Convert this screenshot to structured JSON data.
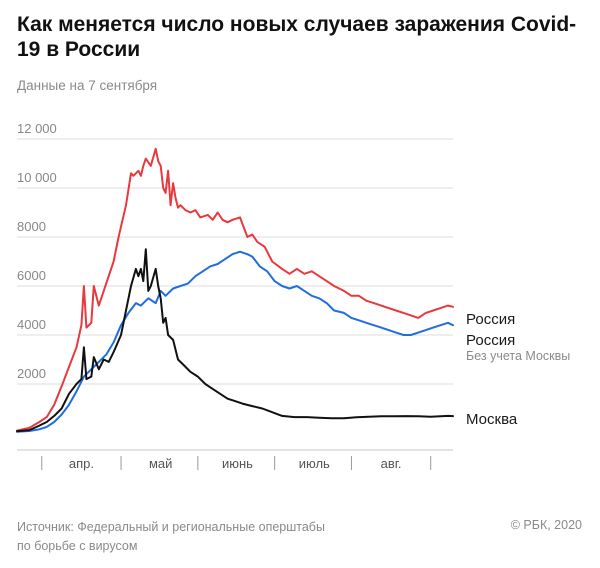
{
  "header": {
    "title": "Как меняется число новых случаев заражения Covid-19 в России",
    "subtitle": "Данные на 7 сентября"
  },
  "footer": {
    "source_line1": "Источник: Федеральный и региональные оперштабы",
    "source_line2": "по борьбе с вирусом",
    "copyright": "© РБК, 2020"
  },
  "chart_data": {
    "type": "line",
    "title": "Как меняется число новых случаев заражения Covid-19 в России",
    "subtitle": "Данные на 7 сентября",
    "x_start": "2020-03-15",
    "x_end": "2020-09-07",
    "x_ticks": [
      {
        "date": "2020-03-25"
      },
      {
        "date": "2020-04-26"
      },
      {
        "date": "2020-05-27"
      },
      {
        "date": "2020-06-27"
      },
      {
        "date": "2020-07-28"
      },
      {
        "date": "2020-08-29"
      }
    ],
    "month_labels": [
      {
        "label": "апр.",
        "date": "2020-04-10"
      },
      {
        "label": "май",
        "date": "2020-05-12"
      },
      {
        "label": "июнь",
        "date": "2020-06-12"
      },
      {
        "label": "июль",
        "date": "2020-07-13"
      },
      {
        "label": "авг.",
        "date": "2020-08-13"
      }
    ],
    "y_ticks": [
      2000,
      4000,
      6000,
      8000,
      10000,
      12000
    ],
    "y_tick_labels": [
      "2000",
      "4000",
      "6000",
      "8000",
      "10 000",
      "12 000"
    ],
    "ylim": [
      0,
      12000
    ],
    "grid": true,
    "series": [
      {
        "name": "Россия",
        "sublabel": "",
        "color": "#e8393d",
        "points": [
          [
            "2020-03-15",
            100
          ],
          [
            "2020-03-20",
            210
          ],
          [
            "2020-03-24",
            450
          ],
          [
            "2020-03-27",
            650
          ],
          [
            "2020-03-30",
            1150
          ],
          [
            "2020-04-02",
            1900
          ],
          [
            "2020-04-05",
            2700
          ],
          [
            "2020-04-08",
            3500
          ],
          [
            "2020-04-10",
            4400
          ],
          [
            "2020-04-11",
            6000
          ],
          [
            "2020-04-12",
            4300
          ],
          [
            "2020-04-14",
            4500
          ],
          [
            "2020-04-15",
            6000
          ],
          [
            "2020-04-17",
            5200
          ],
          [
            "2020-04-20",
            6100
          ],
          [
            "2020-04-23",
            7000
          ],
          [
            "2020-04-25",
            8000
          ],
          [
            "2020-04-28",
            9300
          ],
          [
            "2020-04-30",
            10600
          ],
          [
            "2020-05-01",
            10500
          ],
          [
            "2020-05-02",
            10600
          ],
          [
            "2020-05-03",
            10700
          ],
          [
            "2020-05-04",
            10500
          ],
          [
            "2020-05-05",
            10900
          ],
          [
            "2020-05-06",
            11200
          ],
          [
            "2020-05-08",
            10900
          ],
          [
            "2020-05-10",
            11600
          ],
          [
            "2020-05-11",
            11100
          ],
          [
            "2020-05-12",
            10900
          ],
          [
            "2020-05-13",
            10000
          ],
          [
            "2020-05-14",
            9800
          ],
          [
            "2020-05-15",
            10700
          ],
          [
            "2020-05-16",
            9300
          ],
          [
            "2020-05-17",
            10200
          ],
          [
            "2020-05-18",
            9600
          ],
          [
            "2020-05-19",
            9200
          ],
          [
            "2020-05-20",
            9300
          ],
          [
            "2020-05-22",
            9100
          ],
          [
            "2020-05-24",
            9000
          ],
          [
            "2020-05-26",
            9100
          ],
          [
            "2020-05-28",
            8800
          ],
          [
            "2020-05-31",
            8900
          ],
          [
            "2020-06-02",
            8700
          ],
          [
            "2020-06-04",
            9000
          ],
          [
            "2020-06-06",
            8700
          ],
          [
            "2020-06-08",
            8600
          ],
          [
            "2020-06-10",
            8700
          ],
          [
            "2020-06-13",
            8800
          ],
          [
            "2020-06-16",
            8000
          ],
          [
            "2020-06-18",
            8100
          ],
          [
            "2020-06-20",
            7800
          ],
          [
            "2020-06-23",
            7600
          ],
          [
            "2020-06-26",
            7000
          ],
          [
            "2020-06-30",
            6700
          ],
          [
            "2020-07-03",
            6500
          ],
          [
            "2020-07-06",
            6700
          ],
          [
            "2020-07-09",
            6500
          ],
          [
            "2020-07-12",
            6600
          ],
          [
            "2020-07-15",
            6400
          ],
          [
            "2020-07-18",
            6200
          ],
          [
            "2020-07-21",
            6000
          ],
          [
            "2020-07-25",
            5800
          ],
          [
            "2020-07-28",
            5600
          ],
          [
            "2020-07-31",
            5600
          ],
          [
            "2020-08-03",
            5400
          ],
          [
            "2020-08-06",
            5300
          ],
          [
            "2020-08-09",
            5200
          ],
          [
            "2020-08-12",
            5100
          ],
          [
            "2020-08-15",
            5000
          ],
          [
            "2020-08-18",
            4900
          ],
          [
            "2020-08-21",
            4800
          ],
          [
            "2020-08-24",
            4700
          ],
          [
            "2020-08-27",
            4900
          ],
          [
            "2020-08-30",
            5000
          ],
          [
            "2020-09-02",
            5100
          ],
          [
            "2020-09-05",
            5200
          ],
          [
            "2020-09-07",
            5150
          ]
        ]
      },
      {
        "name": "Россия",
        "sublabel": "Без учета Москвы",
        "color": "#1f6ee0",
        "points": [
          [
            "2020-03-15",
            50
          ],
          [
            "2020-03-20",
            80
          ],
          [
            "2020-03-24",
            150
          ],
          [
            "2020-03-27",
            250
          ],
          [
            "2020-03-30",
            450
          ],
          [
            "2020-04-02",
            750
          ],
          [
            "2020-04-05",
            1150
          ],
          [
            "2020-04-08",
            1700
          ],
          [
            "2020-04-11",
            2300
          ],
          [
            "2020-04-14",
            2600
          ],
          [
            "2020-04-17",
            2900
          ],
          [
            "2020-04-20",
            3200
          ],
          [
            "2020-04-23",
            3700
          ],
          [
            "2020-04-26",
            4400
          ],
          [
            "2020-04-29",
            4900
          ],
          [
            "2020-05-02",
            5300
          ],
          [
            "2020-05-04",
            5200
          ],
          [
            "2020-05-07",
            5500
          ],
          [
            "2020-05-10",
            5300
          ],
          [
            "2020-05-12",
            5800
          ],
          [
            "2020-05-14",
            5600
          ],
          [
            "2020-05-17",
            5900
          ],
          [
            "2020-05-20",
            6000
          ],
          [
            "2020-05-23",
            6100
          ],
          [
            "2020-05-26",
            6400
          ],
          [
            "2020-05-29",
            6600
          ],
          [
            "2020-06-01",
            6800
          ],
          [
            "2020-06-04",
            6900
          ],
          [
            "2020-06-07",
            7100
          ],
          [
            "2020-06-10",
            7300
          ],
          [
            "2020-06-13",
            7400
          ],
          [
            "2020-06-16",
            7300
          ],
          [
            "2020-06-18",
            7200
          ],
          [
            "2020-06-21",
            6800
          ],
          [
            "2020-06-24",
            6600
          ],
          [
            "2020-06-27",
            6200
          ],
          [
            "2020-06-30",
            6000
          ],
          [
            "2020-07-03",
            5900
          ],
          [
            "2020-07-06",
            6000
          ],
          [
            "2020-07-09",
            5800
          ],
          [
            "2020-07-12",
            5600
          ],
          [
            "2020-07-15",
            5500
          ],
          [
            "2020-07-18",
            5300
          ],
          [
            "2020-07-21",
            5000
          ],
          [
            "2020-07-25",
            4900
          ],
          [
            "2020-07-28",
            4700
          ],
          [
            "2020-07-31",
            4600
          ],
          [
            "2020-08-03",
            4500
          ],
          [
            "2020-08-06",
            4400
          ],
          [
            "2020-08-09",
            4300
          ],
          [
            "2020-08-12",
            4200
          ],
          [
            "2020-08-15",
            4100
          ],
          [
            "2020-08-18",
            4000
          ],
          [
            "2020-08-21",
            4000
          ],
          [
            "2020-08-24",
            4100
          ],
          [
            "2020-08-27",
            4200
          ],
          [
            "2020-08-30",
            4300
          ],
          [
            "2020-09-02",
            4400
          ],
          [
            "2020-09-05",
            4500
          ],
          [
            "2020-09-07",
            4400
          ]
        ]
      },
      {
        "name": "Москва",
        "sublabel": "",
        "color": "#111111",
        "points": [
          [
            "2020-03-15",
            70
          ],
          [
            "2020-03-20",
            120
          ],
          [
            "2020-03-24",
            300
          ],
          [
            "2020-03-27",
            450
          ],
          [
            "2020-03-30",
            700
          ],
          [
            "2020-04-02",
            1000
          ],
          [
            "2020-04-05",
            1600
          ],
          [
            "2020-04-08",
            2000
          ],
          [
            "2020-04-10",
            2200
          ],
          [
            "2020-04-11",
            3500
          ],
          [
            "2020-04-12",
            2200
          ],
          [
            "2020-04-14",
            2300
          ],
          [
            "2020-04-15",
            3100
          ],
          [
            "2020-04-17",
            2600
          ],
          [
            "2020-04-19",
            3000
          ],
          [
            "2020-04-21",
            2900
          ],
          [
            "2020-04-23",
            3300
          ],
          [
            "2020-04-26",
            4000
          ],
          [
            "2020-04-28",
            5000
          ],
          [
            "2020-04-30",
            6000
          ],
          [
            "2020-05-02",
            6700
          ],
          [
            "2020-05-03",
            6400
          ],
          [
            "2020-05-04",
            6700
          ],
          [
            "2020-05-05",
            6200
          ],
          [
            "2020-05-06",
            7500
          ],
          [
            "2020-05-07",
            5800
          ],
          [
            "2020-05-08",
            6000
          ],
          [
            "2020-05-10",
            6700
          ],
          [
            "2020-05-11",
            6000
          ],
          [
            "2020-05-12",
            5500
          ],
          [
            "2020-05-13",
            4500
          ],
          [
            "2020-05-14",
            4700
          ],
          [
            "2020-05-15",
            4000
          ],
          [
            "2020-05-17",
            3800
          ],
          [
            "2020-05-19",
            3000
          ],
          [
            "2020-05-21",
            2800
          ],
          [
            "2020-05-24",
            2500
          ],
          [
            "2020-05-27",
            2300
          ],
          [
            "2020-05-30",
            2000
          ],
          [
            "2020-06-02",
            1800
          ],
          [
            "2020-06-05",
            1600
          ],
          [
            "2020-06-08",
            1400
          ],
          [
            "2020-06-11",
            1300
          ],
          [
            "2020-06-14",
            1200
          ],
          [
            "2020-06-18",
            1100
          ],
          [
            "2020-06-22",
            1000
          ],
          [
            "2020-06-26",
            850
          ],
          [
            "2020-06-30",
            700
          ],
          [
            "2020-07-05",
            650
          ],
          [
            "2020-07-10",
            650
          ],
          [
            "2020-07-15",
            620
          ],
          [
            "2020-07-20",
            600
          ],
          [
            "2020-07-25",
            600
          ],
          [
            "2020-07-30",
            640
          ],
          [
            "2020-08-04",
            660
          ],
          [
            "2020-08-09",
            680
          ],
          [
            "2020-08-14",
            680
          ],
          [
            "2020-08-19",
            690
          ],
          [
            "2020-08-24",
            680
          ],
          [
            "2020-08-29",
            660
          ],
          [
            "2020-09-02",
            680
          ],
          [
            "2020-09-05",
            700
          ],
          [
            "2020-09-07",
            690
          ]
        ]
      }
    ]
  }
}
